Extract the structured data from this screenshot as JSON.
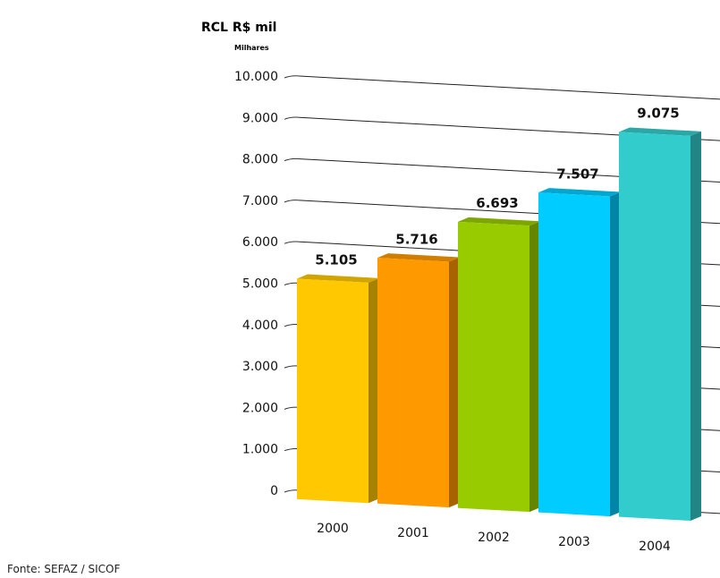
{
  "chart_data": {
    "type": "bar",
    "title": "",
    "ylabel": "RCL R$ mil",
    "yunit": "Milhares",
    "xlabel": "",
    "categories": [
      "2000",
      "2001",
      "2002",
      "2003",
      "2004"
    ],
    "values": [
      5105,
      5716,
      6693,
      7507,
      9075
    ],
    "value_labels": [
      "5.105",
      "5.716",
      "6.693",
      "7.507",
      "9.075"
    ],
    "colors": [
      "#FFC800",
      "#FF9900",
      "#99CC00",
      "#00CCFF",
      "#33CCCC"
    ],
    "ylim": [
      0,
      10000
    ],
    "yticks": [
      0,
      1000,
      2000,
      3000,
      4000,
      5000,
      6000,
      7000,
      8000,
      9000,
      10000
    ],
    "ytick_labels": [
      "0",
      "1.000",
      "2.000",
      "3.000",
      "4.000",
      "5.000",
      "6.000",
      "7.000",
      "8.000",
      "9.000",
      "10.000"
    ],
    "grid": true,
    "source": "Fonte: SEFAZ / SICOF"
  }
}
